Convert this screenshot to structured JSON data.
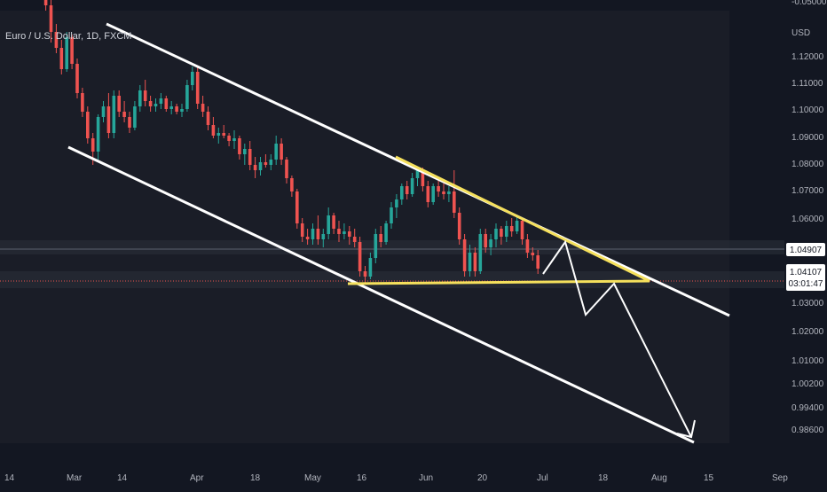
{
  "header": {
    "symbol_title": "Euro / U.S. Dollar, 1D, FXCM",
    "currency": "USD",
    "top_tick": "-0.05000"
  },
  "price_scale": {
    "ticks": [
      "1.12000",
      "1.11000",
      "1.10000",
      "1.09000",
      "1.08000",
      "1.07000",
      "1.06000",
      "1.03000",
      "1.02000",
      "1.01000",
      "1.00200",
      "0.99400",
      "0.98600"
    ],
    "current_price_label": "1.04107",
    "countdown_label": "03:01:47",
    "level_label": "1.04907"
  },
  "time_axis": {
    "labels": [
      "14",
      "Mar",
      "14",
      "Apr",
      "18",
      "May",
      "16",
      "Jun",
      "20",
      "Jul",
      "18",
      "Aug",
      "15",
      "Sep"
    ]
  },
  "colors": {
    "background": "#131722",
    "up": "#26a69a",
    "down": "#ef5350",
    "channel_lines": "#ffffff",
    "triangle_lines": "#f5e05c",
    "level_line": "#5b6270",
    "current_price_line": "#ef5350"
  },
  "chart_data": {
    "type": "candlestick",
    "symbol": "Euro / U.S. Dollar",
    "interval": "1D",
    "source": "FXCM",
    "y_axis_ticks": [
      1.12,
      1.11,
      1.1,
      1.09,
      1.08,
      1.07,
      1.06,
      1.03,
      1.02,
      1.01,
      1.002,
      0.994,
      0.986
    ],
    "current_price": 1.04107,
    "horizontal_level": 1.04907,
    "drawings": [
      {
        "type": "channel-upper-line",
        "color": "white"
      },
      {
        "type": "channel-lower-line",
        "color": "white"
      },
      {
        "type": "descending-triangle",
        "color": "yellow"
      },
      {
        "type": "projection-arrow",
        "color": "white"
      }
    ],
    "candles": [
      [
        1.15,
        1.151,
        1.148,
        1.149
      ],
      [
        1.149,
        1.152,
        1.147,
        1.15
      ],
      [
        1.15,
        1.1515,
        1.147,
        1.148
      ],
      [
        1.148,
        1.15,
        1.144,
        1.146
      ],
      [
        1.146,
        1.148,
        1.138,
        1.14
      ],
      [
        1.14,
        1.142,
        1.126,
        1.13
      ],
      [
        1.13,
        1.133,
        1.122,
        1.124
      ],
      [
        1.124,
        1.127,
        1.114,
        1.116
      ],
      [
        1.116,
        1.13,
        1.115,
        1.128
      ],
      [
        1.128,
        1.129,
        1.116,
        1.118
      ],
      [
        1.118,
        1.12,
        1.105,
        1.107
      ],
      [
        1.107,
        1.109,
        1.098,
        1.1
      ],
      [
        1.1,
        1.102,
        1.088,
        1.09
      ],
      [
        1.09,
        1.092,
        1.08,
        1.085
      ],
      [
        1.085,
        1.099,
        1.082,
        1.098
      ],
      [
        1.098,
        1.104,
        1.096,
        1.102
      ],
      [
        1.102,
        1.107,
        1.09,
        1.092
      ],
      [
        1.092,
        1.108,
        1.09,
        1.106
      ],
      [
        1.106,
        1.108,
        1.098,
        1.1
      ],
      [
        1.1,
        1.104,
        1.096,
        1.098
      ],
      [
        1.098,
        1.1,
        1.092,
        1.094
      ],
      [
        1.094,
        1.104,
        1.093,
        1.102
      ],
      [
        1.102,
        1.11,
        1.1,
        1.108
      ],
      [
        1.108,
        1.112,
        1.102,
        1.104
      ],
      [
        1.104,
        1.106,
        1.1,
        1.102
      ],
      [
        1.102,
        1.105,
        1.1,
        1.103
      ],
      [
        1.103,
        1.107,
        1.101,
        1.105
      ],
      [
        1.105,
        1.106,
        1.1,
        1.101
      ],
      [
        1.101,
        1.104,
        1.099,
        1.102
      ],
      [
        1.102,
        1.103,
        1.099,
        1.1
      ],
      [
        1.1,
        1.103,
        1.098,
        1.101
      ],
      [
        1.101,
        1.112,
        1.1,
        1.11
      ],
      [
        1.11,
        1.117,
        1.108,
        1.115
      ],
      [
        1.115,
        1.117,
        1.101,
        1.103
      ],
      [
        1.103,
        1.106,
        1.098,
        1.1
      ],
      [
        1.1,
        1.102,
        1.093,
        1.095
      ],
      [
        1.095,
        1.098,
        1.09,
        1.091
      ],
      [
        1.091,
        1.094,
        1.088,
        1.092
      ],
      [
        1.092,
        1.095,
        1.09,
        1.091
      ],
      [
        1.091,
        1.092,
        1.087,
        1.089
      ],
      [
        1.089,
        1.093,
        1.086,
        1.09
      ],
      [
        1.09,
        1.091,
        1.082,
        1.084
      ],
      [
        1.084,
        1.088,
        1.08,
        1.086
      ],
      [
        1.086,
        1.089,
        1.078,
        1.08
      ],
      [
        1.08,
        1.083,
        1.075,
        1.078
      ],
      [
        1.078,
        1.083,
        1.076,
        1.081
      ],
      [
        1.081,
        1.084,
        1.079,
        1.08
      ],
      [
        1.08,
        1.084,
        1.078,
        1.082
      ],
      [
        1.082,
        1.091,
        1.08,
        1.088
      ],
      [
        1.088,
        1.09,
        1.08,
        1.082
      ],
      [
        1.082,
        1.083,
        1.073,
        1.075
      ],
      [
        1.075,
        1.076,
        1.068,
        1.07
      ],
      [
        1.07,
        1.071,
        1.056,
        1.058
      ],
      [
        1.058,
        1.06,
        1.051,
        1.053
      ],
      [
        1.053,
        1.056,
        1.05,
        1.052
      ],
      [
        1.052,
        1.058,
        1.05,
        1.056
      ],
      [
        1.056,
        1.061,
        1.05,
        1.052
      ],
      [
        1.052,
        1.056,
        1.049,
        1.054
      ],
      [
        1.054,
        1.064,
        1.052,
        1.061
      ],
      [
        1.061,
        1.062,
        1.054,
        1.056
      ],
      [
        1.056,
        1.059,
        1.051,
        1.054
      ],
      [
        1.054,
        1.058,
        1.052,
        1.055
      ],
      [
        1.055,
        1.057,
        1.05,
        1.053
      ],
      [
        1.053,
        1.056,
        1.049,
        1.051
      ],
      [
        1.051,
        1.053,
        1.038,
        1.04
      ],
      [
        1.04,
        1.042,
        1.035,
        1.038
      ],
      [
        1.038,
        1.047,
        1.037,
        1.045
      ],
      [
        1.045,
        1.056,
        1.043,
        1.054
      ],
      [
        1.054,
        1.057,
        1.049,
        1.051
      ],
      [
        1.051,
        1.059,
        1.05,
        1.058
      ],
      [
        1.058,
        1.066,
        1.056,
        1.064
      ],
      [
        1.064,
        1.069,
        1.06,
        1.067
      ],
      [
        1.067,
        1.073,
        1.065,
        1.072
      ],
      [
        1.072,
        1.074,
        1.067,
        1.069
      ],
      [
        1.069,
        1.077,
        1.068,
        1.075
      ],
      [
        1.075,
        1.079,
        1.072,
        1.078
      ],
      [
        1.078,
        1.079,
        1.07,
        1.072
      ],
      [
        1.072,
        1.074,
        1.064,
        1.066
      ],
      [
        1.066,
        1.073,
        1.065,
        1.072
      ],
      [
        1.072,
        1.074,
        1.068,
        1.07
      ],
      [
        1.07,
        1.073,
        1.067,
        1.069
      ],
      [
        1.069,
        1.072,
        1.066,
        1.07
      ],
      [
        1.07,
        1.078,
        1.06,
        1.062
      ],
      [
        1.062,
        1.064,
        1.05,
        1.052
      ],
      [
        1.052,
        1.054,
        1.038,
        1.04
      ],
      [
        1.04,
        1.05,
        1.038,
        1.047
      ],
      [
        1.047,
        1.049,
        1.038,
        1.04
      ],
      [
        1.04,
        1.056,
        1.039,
        1.054
      ],
      [
        1.054,
        1.056,
        1.047,
        1.049
      ],
      [
        1.049,
        1.054,
        1.046,
        1.052
      ],
      [
        1.052,
        1.058,
        1.049,
        1.056
      ],
      [
        1.056,
        1.057,
        1.05,
        1.053
      ],
      [
        1.053,
        1.059,
        1.051,
        1.057
      ],
      [
        1.057,
        1.06,
        1.053,
        1.055
      ],
      [
        1.055,
        1.061,
        1.054,
        1.059
      ],
      [
        1.059,
        1.06,
        1.05,
        1.052
      ],
      [
        1.052,
        1.054,
        1.045,
        1.047
      ],
      [
        1.047,
        1.049,
        1.044,
        1.046
      ],
      [
        1.046,
        1.048,
        1.039,
        1.041
      ]
    ]
  }
}
